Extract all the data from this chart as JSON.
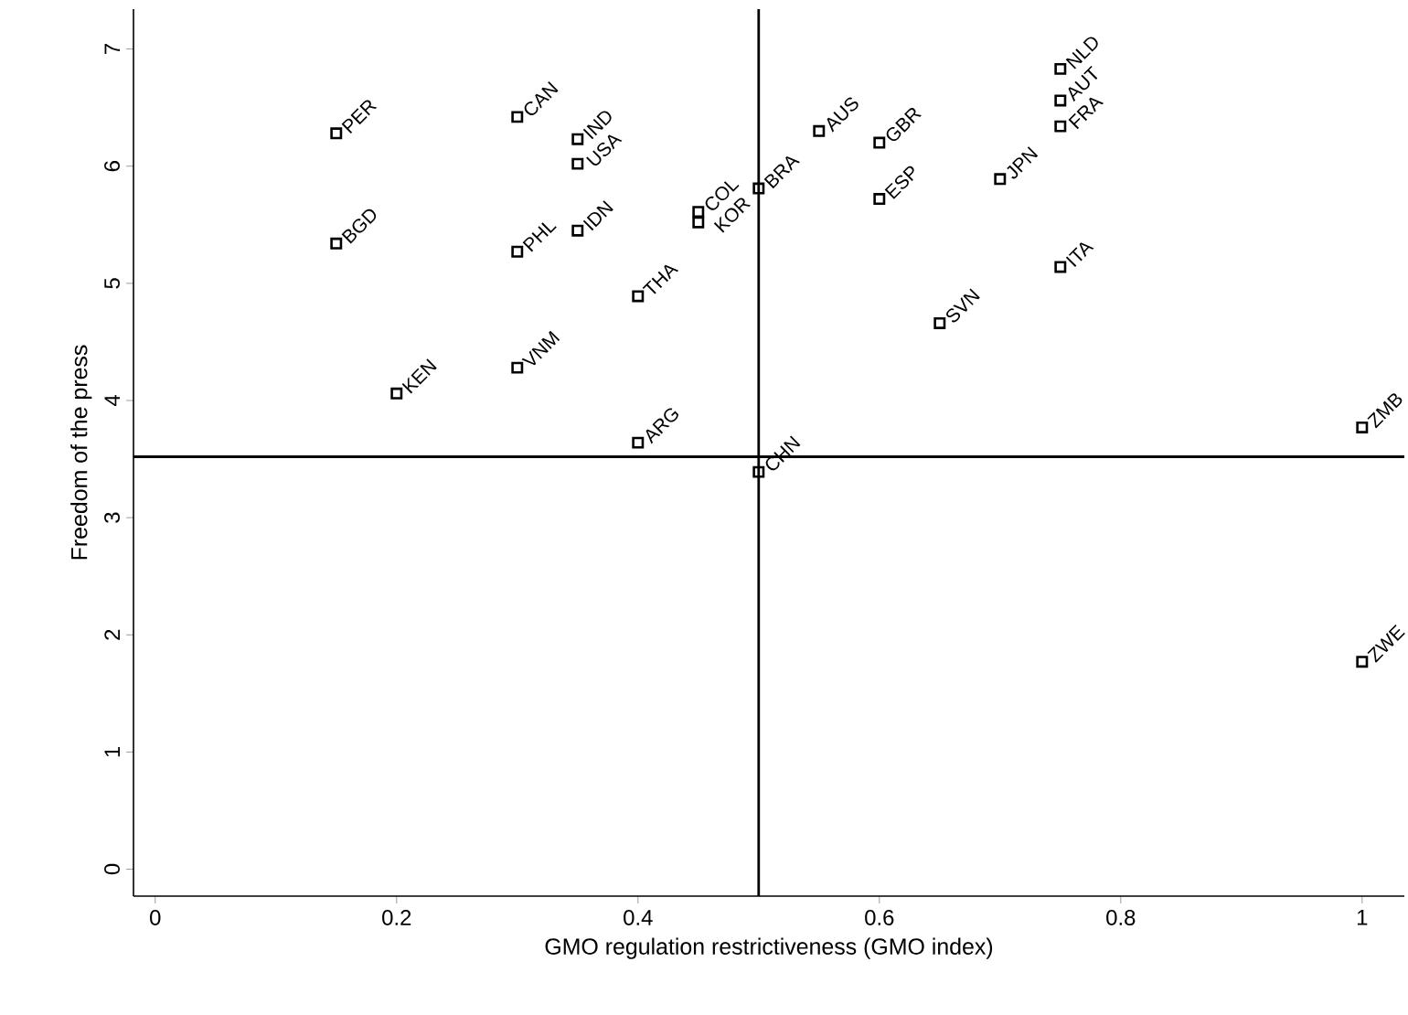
{
  "chart_data": {
    "type": "scatter",
    "xlabel": "GMO regulation restrictiveness (GMO index)",
    "ylabel": "Freedom of the press",
    "xlim": [
      -0.018,
      1.035
    ],
    "ylim": [
      -0.23,
      7.34
    ],
    "xticks": [
      0,
      0.2,
      0.4,
      0.6,
      0.8,
      1
    ],
    "yticks": [
      0,
      1,
      2,
      3,
      4,
      5,
      6,
      7
    ],
    "marker": "square",
    "series": [
      {
        "color": "#000000",
        "x": [
          0.15,
          0.3,
          0.35,
          0.35,
          0.15,
          0.3,
          0.35,
          0.45,
          0.45,
          0.5,
          0.4,
          0.2,
          0.3,
          0.4,
          0.5,
          0.55,
          0.6,
          0.6,
          0.7,
          0.75,
          0.75,
          0.75,
          0.75,
          0.65,
          1.0,
          1.0
        ],
        "values": [
          6.28,
          6.42,
          6.23,
          6.02,
          5.34,
          5.27,
          5.45,
          5.61,
          5.52,
          5.81,
          4.89,
          4.06,
          4.28,
          3.64,
          3.39,
          6.3,
          6.2,
          5.72,
          5.89,
          6.83,
          6.56,
          6.34,
          5.14,
          4.66,
          3.77,
          1.77
        ]
      }
    ],
    "ref_lines": [
      {
        "axis": "x",
        "value": 0.5,
        "color": "#000000"
      },
      {
        "axis": "y",
        "value": 3.52,
        "color": "#000000"
      }
    ],
    "annotations": [
      {
        "text": "PER",
        "x": 0.15,
        "y": 6.28
      },
      {
        "text": "CAN",
        "x": 0.3,
        "y": 6.42
      },
      {
        "text": "IND",
        "x": 0.35,
        "y": 6.23
      },
      {
        "text": "USA",
        "x": 0.35,
        "y": 6.02
      },
      {
        "text": "BGD",
        "x": 0.15,
        "y": 5.34
      },
      {
        "text": "PHL",
        "x": 0.3,
        "y": 5.27
      },
      {
        "text": "IDN",
        "x": 0.35,
        "y": 5.45
      },
      {
        "text": "COL",
        "x": 0.45,
        "y": 5.61
      },
      {
        "text": "KOR",
        "x": 0.45,
        "y": 5.52
      },
      {
        "text": "BRA",
        "x": 0.5,
        "y": 5.81
      },
      {
        "text": "THA",
        "x": 0.4,
        "y": 4.89
      },
      {
        "text": "KEN",
        "x": 0.2,
        "y": 4.06
      },
      {
        "text": "VNM",
        "x": 0.3,
        "y": 4.28
      },
      {
        "text": "ARG",
        "x": 0.4,
        "y": 3.64
      },
      {
        "text": "CHN",
        "x": 0.5,
        "y": 3.39
      },
      {
        "text": "AUS",
        "x": 0.55,
        "y": 6.3
      },
      {
        "text": "GBR",
        "x": 0.6,
        "y": 6.2
      },
      {
        "text": "ESP",
        "x": 0.6,
        "y": 5.72
      },
      {
        "text": "JPN",
        "x": 0.7,
        "y": 5.89
      },
      {
        "text": "NLD",
        "x": 0.75,
        "y": 6.83
      },
      {
        "text": "AUT",
        "x": 0.75,
        "y": 6.56
      },
      {
        "text": "FRA",
        "x": 0.75,
        "y": 6.34
      },
      {
        "text": "ITA",
        "x": 0.75,
        "y": 5.14
      },
      {
        "text": "SVN",
        "x": 0.65,
        "y": 4.66
      },
      {
        "text": "ZMB",
        "x": 1.0,
        "y": 3.77
      },
      {
        "text": "ZWE",
        "x": 1.0,
        "y": 1.77
      }
    ]
  }
}
